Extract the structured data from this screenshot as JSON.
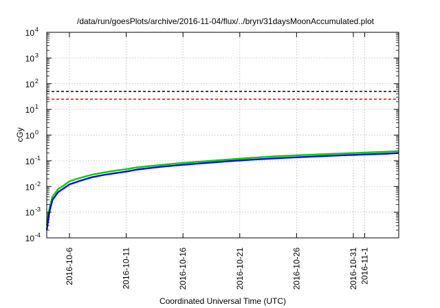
{
  "chart_data": {
    "type": "line",
    "title": "/data/run/goesPlots/archive/2016-11-04/flux/../bryn/31daysMoonAccumulated.plot",
    "xlabel": "Coordinated Universal Time (UTC)",
    "ylabel": "cGy",
    "yscale": "log",
    "ylim": [
      0.0001,
      10000
    ],
    "y_ticks": [
      {
        "base": "10",
        "exp": "-4",
        "value": 0.0001
      },
      {
        "base": "10",
        "exp": "-3",
        "value": 0.001
      },
      {
        "base": "10",
        "exp": "-2",
        "value": 0.01
      },
      {
        "base": "10",
        "exp": "-1",
        "value": 0.1
      },
      {
        "base": "10",
        "exp": "0",
        "value": 1
      },
      {
        "base": "10",
        "exp": "1",
        "value": 10
      },
      {
        "base": "10",
        "exp": "2",
        "value": 100
      },
      {
        "base": "10",
        "exp": "3",
        "value": 1000
      },
      {
        "base": "10",
        "exp": "4",
        "value": 10000
      }
    ],
    "xlim": [
      "2016-10-04",
      "2016-11-04"
    ],
    "x_ticks": [
      {
        "label": "2016-10-6",
        "date": "2016-10-06"
      },
      {
        "label": "2016-10-11",
        "date": "2016-10-11"
      },
      {
        "label": "2016-10-16",
        "date": "2016-10-16"
      },
      {
        "label": "2016-10-21",
        "date": "2016-10-21"
      },
      {
        "label": "2016-10-26",
        "date": "2016-10-26"
      },
      {
        "label": "2016-10-31",
        "date": "2016-10-31"
      },
      {
        "label": "2016-11-1",
        "date": "2016-11-01"
      }
    ],
    "grid": true,
    "reference_lines": [
      {
        "value": 50,
        "color": "#000000",
        "style": "dashed"
      },
      {
        "value": 25,
        "color": "#ff0000",
        "style": "dashed"
      }
    ],
    "series": [
      {
        "color": "#00cc00",
        "x": [
          "2016-10-04",
          "2016-10-04T06:00",
          "2016-10-04T12:00",
          "2016-10-05",
          "2016-10-05T12:00",
          "2016-10-06",
          "2016-10-07",
          "2016-10-08",
          "2016-10-09",
          "2016-10-10",
          "2016-10-11",
          "2016-10-12",
          "2016-10-14",
          "2016-10-16",
          "2016-10-18",
          "2016-10-20",
          "2016-10-22",
          "2016-10-24",
          "2016-10-26",
          "2016-10-28",
          "2016-10-30",
          "2016-11-01",
          "2016-11-03",
          "2016-11-04"
        ],
        "values": [
          0.0003,
          0.0015,
          0.004,
          0.008,
          0.011,
          0.016,
          0.022,
          0.029,
          0.035,
          0.041,
          0.047,
          0.056,
          0.069,
          0.083,
          0.097,
          0.113,
          0.13,
          0.148,
          0.163,
          0.178,
          0.193,
          0.208,
          0.226,
          0.24
        ]
      },
      {
        "color": "#0000ff",
        "x": [
          "2016-10-04",
          "2016-10-04T06:00",
          "2016-10-04T12:00",
          "2016-10-05",
          "2016-10-05T12:00",
          "2016-10-06",
          "2016-10-07",
          "2016-10-08",
          "2016-10-09",
          "2016-10-10",
          "2016-10-11",
          "2016-10-12",
          "2016-10-14",
          "2016-10-16",
          "2016-10-18",
          "2016-10-20",
          "2016-10-22",
          "2016-10-24",
          "2016-10-26",
          "2016-10-28",
          "2016-10-30",
          "2016-11-01",
          "2016-11-03",
          "2016-11-04"
        ],
        "values": [
          0.0002,
          0.0011,
          0.003,
          0.006,
          0.0085,
          0.012,
          0.017,
          0.023,
          0.028,
          0.033,
          0.038,
          0.046,
          0.058,
          0.07,
          0.082,
          0.096,
          0.11,
          0.124,
          0.137,
          0.15,
          0.163,
          0.176,
          0.19,
          0.2
        ]
      }
    ]
  }
}
